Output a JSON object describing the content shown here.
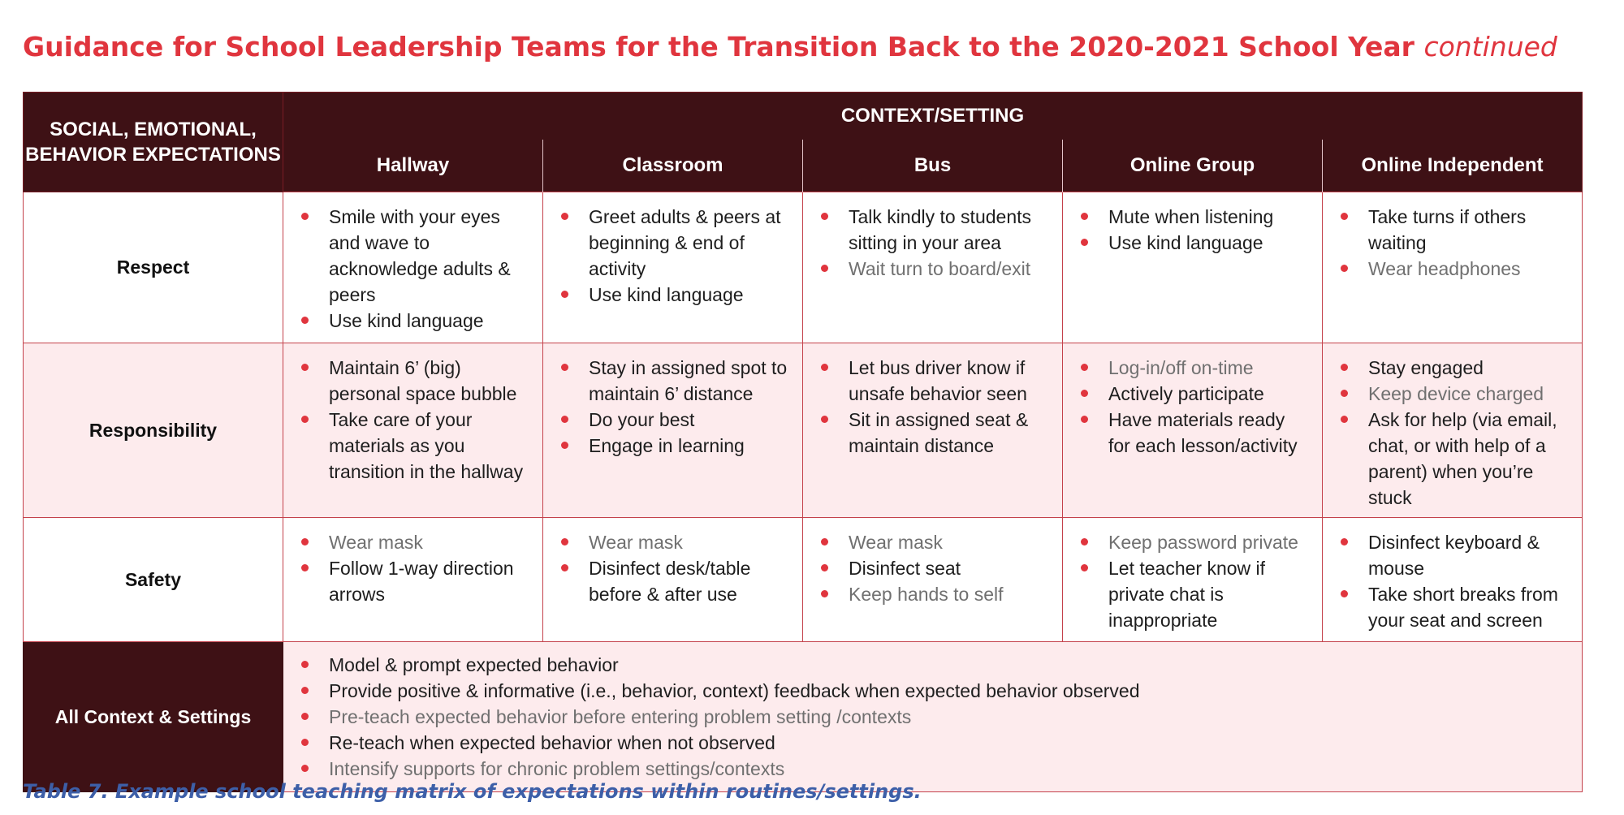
{
  "page": {
    "title": "Guidance for School Leadership Teams for the Transition Back to the 2020-2021 School Year",
    "title_suffix": "continued",
    "caption": "Table 7. Example school teaching matrix of expectations within routines/settings."
  },
  "colors": {
    "title": "#e0353e",
    "header_bg": "#3e1115",
    "row_alt_bg": "#fdebed",
    "grid_lines": "#c4414b",
    "bullet": "#e0353e",
    "caption": "#3d5fa8"
  },
  "table": {
    "corner_header": "SOCIAL, EMOTIONAL, BEHAVIOR EXPECTATIONS",
    "context_header": "CONTEXT/SETTING",
    "columns": [
      "Hallway",
      "Classroom",
      "Bus",
      "Online Group",
      "Online Independent"
    ],
    "rows": [
      {
        "label": "Respect",
        "cells": [
          [
            "Smile with your eyes and wave to acknowledge adults & peers",
            "Use kind language"
          ],
          [
            "Greet adults & peers at beginning & end of activity",
            "Use kind language"
          ],
          [
            "Talk kindly to students sitting in your area",
            "Wait turn to board/exit"
          ],
          [
            "Mute when listening",
            "Use kind language"
          ],
          [
            "Take turns if others waiting",
            "Wear headphones"
          ]
        ]
      },
      {
        "label": "Responsibility",
        "cells": [
          [
            "Maintain 6’ (big) personal space bubble",
            "Take care of your materials as you transition in the hallway"
          ],
          [
            "Stay in assigned spot to maintain 6’ distance",
            "Do your best",
            "Engage in learning"
          ],
          [
            "Let bus driver know if unsafe behavior seen",
            "Sit in assigned seat & maintain distance"
          ],
          [
            "Log-in/off on-time",
            "Actively participate",
            "Have materials ready for each lesson/activity"
          ],
          [
            "Stay engaged",
            "Keep device charged",
            "Ask for help (via email, chat, or with help of a parent) when you’re stuck"
          ]
        ]
      },
      {
        "label": "Safety",
        "cells": [
          [
            "Wear mask",
            "Follow 1-way direction arrows"
          ],
          [
            "Wear mask",
            "Disinfect desk/table before & after use"
          ],
          [
            "Wear mask",
            "Disinfect seat",
            "Keep hands to self"
          ],
          [
            "Keep password private",
            "Let teacher know if private chat is inappropriate"
          ],
          [
            "Disinfect keyboard & mouse",
            "Take short breaks from your seat and screen"
          ]
        ]
      }
    ],
    "all_settings": {
      "label": "All Context & Settings",
      "items": [
        "Model & prompt expected behavior",
        "Provide positive & informative (i.e., behavior, context) feedback when expected behavior observed",
        "Pre-teach expected behavior before entering problem setting /contexts",
        "Re-teach when expected behavior when not observed",
        "Intensify supports for chronic problem settings/contexts"
      ]
    }
  }
}
